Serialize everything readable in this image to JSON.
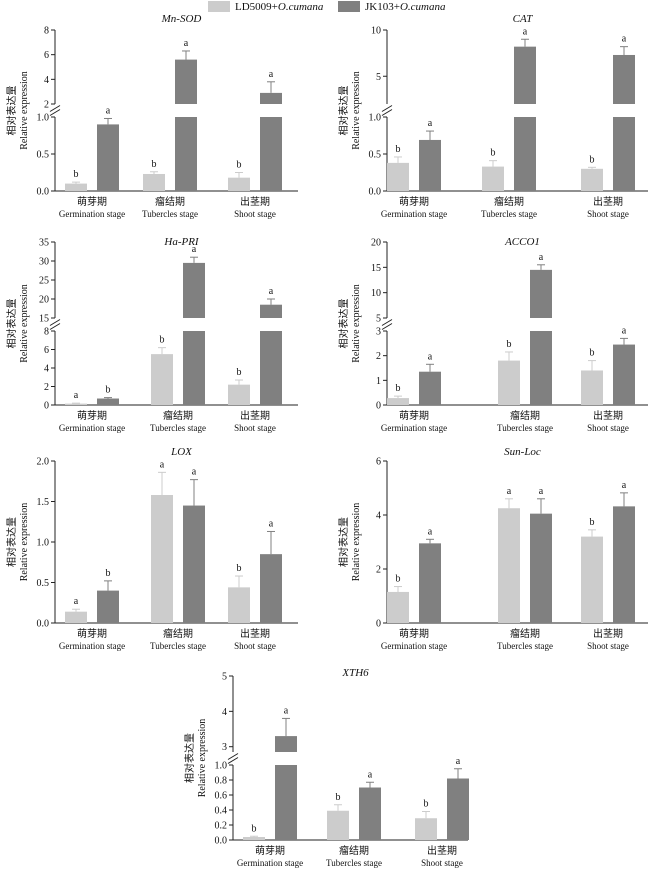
{
  "legend": [
    {
      "name": "LD5009+",
      "name_italic": "O.cumana",
      "color": "#cccccc"
    },
    {
      "name": "JK103+",
      "name_italic": "O.cumana",
      "color": "#808080"
    }
  ],
  "ylabel_cn": "相对表达量",
  "ylabel_en": "Relative expression",
  "categories": [
    {
      "cn": "萌芽期",
      "en": "Germination stage"
    },
    {
      "cn": "瘤结期",
      "en": "Tubercles stage"
    },
    {
      "cn": "出茎期",
      "en": "Shoot stage"
    }
  ],
  "colors": {
    "ld": "#cccccc",
    "jk": "#808080"
  },
  "chart_data": [
    {
      "type": "bar",
      "title": "Mn-SOD",
      "lower": {
        "ylim": [
          0,
          1.0
        ],
        "ticks": [
          "0.0",
          "0.5",
          "1.0"
        ]
      },
      "upper": {
        "ylim": [
          2,
          8
        ],
        "ticks": [
          "2",
          "4",
          "6",
          "8"
        ]
      },
      "series": [
        {
          "name": "LD5009+O.cumana",
          "values": [
            0.1,
            0.23,
            0.18
          ],
          "errors": [
            0.02,
            0.03,
            0.07
          ],
          "labels": [
            "b",
            "b",
            "b"
          ]
        },
        {
          "name": "JK103+O.cumana",
          "values": [
            0.9,
            5.6,
            2.9
          ],
          "errors": [
            0.08,
            0.7,
            0.9
          ],
          "labels": [
            "a",
            "a",
            "a"
          ]
        }
      ]
    },
    {
      "type": "bar",
      "title": "CAT",
      "lower": {
        "ylim": [
          0,
          1.0
        ],
        "ticks": [
          "0.0",
          "0.5",
          "1.0"
        ]
      },
      "upper": {
        "ylim": [
          2,
          10
        ],
        "ticks": [
          "5",
          "10"
        ]
      },
      "series": [
        {
          "name": "LD5009+O.cumana",
          "values": [
            0.38,
            0.33,
            0.3
          ],
          "errors": [
            0.08,
            0.08,
            0.02
          ],
          "labels": [
            "b",
            "b",
            "b"
          ]
        },
        {
          "name": "JK103+O.cumana",
          "values": [
            0.69,
            8.2,
            7.3
          ],
          "errors": [
            0.12,
            0.8,
            0.9
          ],
          "labels": [
            "a",
            "a",
            "a"
          ]
        }
      ]
    },
    {
      "type": "bar",
      "title": "Ha-PRI",
      "lower": {
        "ylim": [
          0,
          8
        ],
        "ticks": [
          "0",
          "2",
          "4",
          "6",
          "8"
        ]
      },
      "upper": {
        "ylim": [
          15,
          35
        ],
        "ticks": [
          "15",
          "20",
          "25",
          "30",
          "35"
        ]
      },
      "series": [
        {
          "name": "LD5009+O.cumana",
          "values": [
            0.15,
            5.5,
            2.2
          ],
          "errors": [
            0.05,
            0.7,
            0.5
          ],
          "labels": [
            "a",
            "b",
            "b"
          ]
        },
        {
          "name": "JK103+O.cumana",
          "values": [
            0.7,
            29.5,
            18.5
          ],
          "errors": [
            0.1,
            1.5,
            1.5
          ],
          "labels": [
            "b",
            "a",
            "a"
          ]
        }
      ]
    },
    {
      "type": "bar",
      "title": "ACCO1",
      "lower": {
        "ylim": [
          0,
          3
        ],
        "ticks": [
          "0",
          "1",
          "2",
          "3"
        ]
      },
      "upper": {
        "ylim": [
          5,
          20
        ],
        "ticks": [
          "5",
          "10",
          "15",
          "20"
        ]
      },
      "series": [
        {
          "name": "LD5009+O.cumana",
          "values": [
            0.28,
            1.8,
            1.4
          ],
          "errors": [
            0.08,
            0.35,
            0.4
          ],
          "labels": [
            "b",
            "b",
            "b"
          ]
        },
        {
          "name": "JK103+O.cumana",
          "values": [
            1.35,
            14.5,
            2.45
          ],
          "errors": [
            0.3,
            1.0,
            0.25
          ],
          "labels": [
            "a",
            "a",
            "a"
          ]
        }
      ]
    },
    {
      "type": "bar",
      "title": "LOX",
      "ylim": [
        0,
        2.0
      ],
      "ticks": [
        "0.0",
        "0.5",
        "1.0",
        "1.5",
        "2.0"
      ],
      "series": [
        {
          "name": "LD5009+O.cumana",
          "values": [
            0.14,
            1.58,
            0.44
          ],
          "errors": [
            0.03,
            0.28,
            0.14
          ],
          "labels": [
            "a",
            "a",
            "b"
          ]
        },
        {
          "name": "JK103+O.cumana",
          "values": [
            0.4,
            1.45,
            0.85
          ],
          "errors": [
            0.12,
            0.32,
            0.28
          ],
          "labels": [
            "b",
            "a",
            "a"
          ]
        }
      ]
    },
    {
      "type": "bar",
      "title": "Sun-Loc",
      "ylim": [
        0,
        6
      ],
      "ticks": [
        "0",
        "2",
        "4",
        "6"
      ],
      "series": [
        {
          "name": "LD5009+O.cumana",
          "values": [
            1.15,
            4.25,
            3.2
          ],
          "errors": [
            0.2,
            0.35,
            0.25
          ],
          "labels": [
            "b",
            "a",
            "b"
          ]
        },
        {
          "name": "JK103+O.cumana",
          "values": [
            2.95,
            4.05,
            4.32
          ],
          "errors": [
            0.15,
            0.55,
            0.5
          ],
          "labels": [
            "a",
            "a",
            "a"
          ]
        }
      ]
    },
    {
      "type": "bar",
      "title": "XTH6",
      "lower": {
        "ylim": [
          0,
          1.0
        ],
        "ticks": [
          "0.0",
          "0.2",
          "0.4",
          "0.6",
          "0.8",
          "1.0"
        ]
      },
      "upper": {
        "ylim": [
          2.85,
          5
        ],
        "ticks": [
          "3",
          "4",
          "5"
        ]
      },
      "series": [
        {
          "name": "LD5009+O.cumana",
          "values": [
            0.04,
            0.39,
            0.29
          ],
          "errors": [
            0.01,
            0.08,
            0.09
          ],
          "labels": [
            "b",
            "b",
            "b"
          ]
        },
        {
          "name": "JK103+O.cumana",
          "values": [
            3.3,
            0.7,
            0.82
          ],
          "errors": [
            0.5,
            0.07,
            0.13
          ],
          "labels": [
            "a",
            "a",
            "a"
          ]
        }
      ]
    }
  ]
}
